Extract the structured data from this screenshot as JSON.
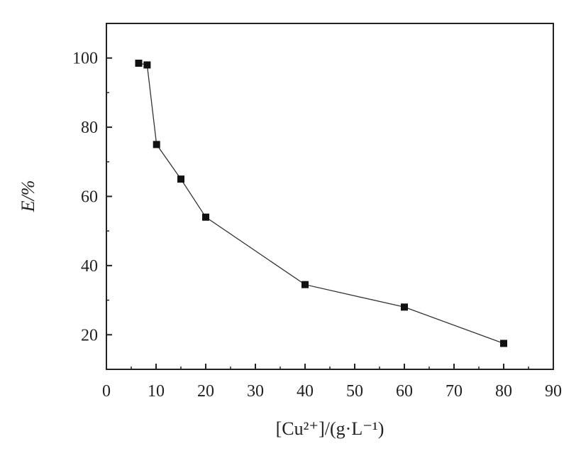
{
  "chart_data": {
    "type": "line",
    "title": "",
    "xlabel": "[Cu²⁺]/(g·L⁻¹)",
    "ylabel": "E/%",
    "xlim": [
      0,
      90
    ],
    "ylim": [
      10,
      110
    ],
    "x_ticks": [
      "0",
      "10",
      "20",
      "30",
      "40",
      "50",
      "60",
      "70",
      "80",
      "90"
    ],
    "y_ticks": [
      "20",
      "40",
      "60",
      "80",
      "100"
    ],
    "grid": false,
    "series": [
      {
        "name": "",
        "marker": "square",
        "x": [
          6.5,
          8.2,
          10.1,
          15,
          20,
          40,
          60,
          80
        ],
        "y": [
          98.5,
          98,
          75,
          65,
          54,
          34.5,
          28,
          17.5
        ]
      }
    ]
  }
}
